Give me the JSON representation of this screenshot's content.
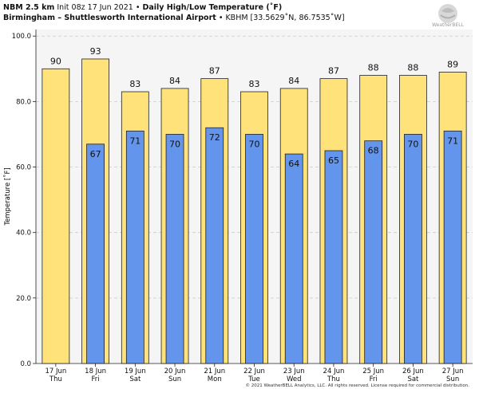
{
  "header": {
    "model": "NBM 2.5 km",
    "init": "Init 08z 17 Jun 2021",
    "sep": "•",
    "product": "Daily High/Low Temperature (˚F)",
    "location": "Birmingham – Shuttlesworth International Airport",
    "station": "• KBHM [33.5629˚N, 86.7535˚W]"
  },
  "logo": {
    "text": "WeatherBELL",
    "icon": "weatherbell-logo-icon"
  },
  "copyright": "© 2021 WeatherBELL Analytics, LLC. All rights reserved. License required for commercial distribution.",
  "colors": {
    "high": "#FFE27A",
    "low": "#6495ED",
    "plot_bg": "#F5F5F5",
    "grid": "#cccccc",
    "edge": "#222222"
  },
  "chart_data": {
    "type": "bar",
    "title": "Daily High/Low Temperature (˚F)",
    "ylabel": "Temperature [˚F]",
    "xlabel": "",
    "ylim": [
      0,
      102
    ],
    "yticks": [
      "0.0",
      "20.0",
      "40.0",
      "60.0",
      "80.0",
      "100.0"
    ],
    "grid": true,
    "categories": [
      {
        "date": "17 Jun",
        "day": "Thu"
      },
      {
        "date": "18 Jun",
        "day": "Fri"
      },
      {
        "date": "19 Jun",
        "day": "Sat"
      },
      {
        "date": "20 Jun",
        "day": "Sun"
      },
      {
        "date": "21 Jun",
        "day": "Mon"
      },
      {
        "date": "22 Jun",
        "day": "Tue"
      },
      {
        "date": "23 Jun",
        "day": "Wed"
      },
      {
        "date": "24 Jun",
        "day": "Thu"
      },
      {
        "date": "25 Jun",
        "day": "Fri"
      },
      {
        "date": "26 Jun",
        "day": "Sat"
      },
      {
        "date": "27 Jun",
        "day": "Sun"
      }
    ],
    "series": [
      {
        "key": "high",
        "values": [
          90,
          93,
          83,
          84,
          87,
          83,
          84,
          87,
          88,
          88,
          89
        ],
        "labels": [
          "90",
          "93",
          "83",
          "84",
          "87",
          "83",
          "84",
          "87",
          "88",
          "88",
          "89"
        ]
      },
      {
        "key": "low",
        "values": [
          null,
          67,
          71,
          70,
          72,
          70,
          64,
          65,
          68,
          70,
          71
        ],
        "labels": [
          "",
          "67",
          "71",
          "70",
          "72",
          "70",
          "64",
          "65",
          "68",
          "70",
          "71"
        ]
      }
    ]
  }
}
